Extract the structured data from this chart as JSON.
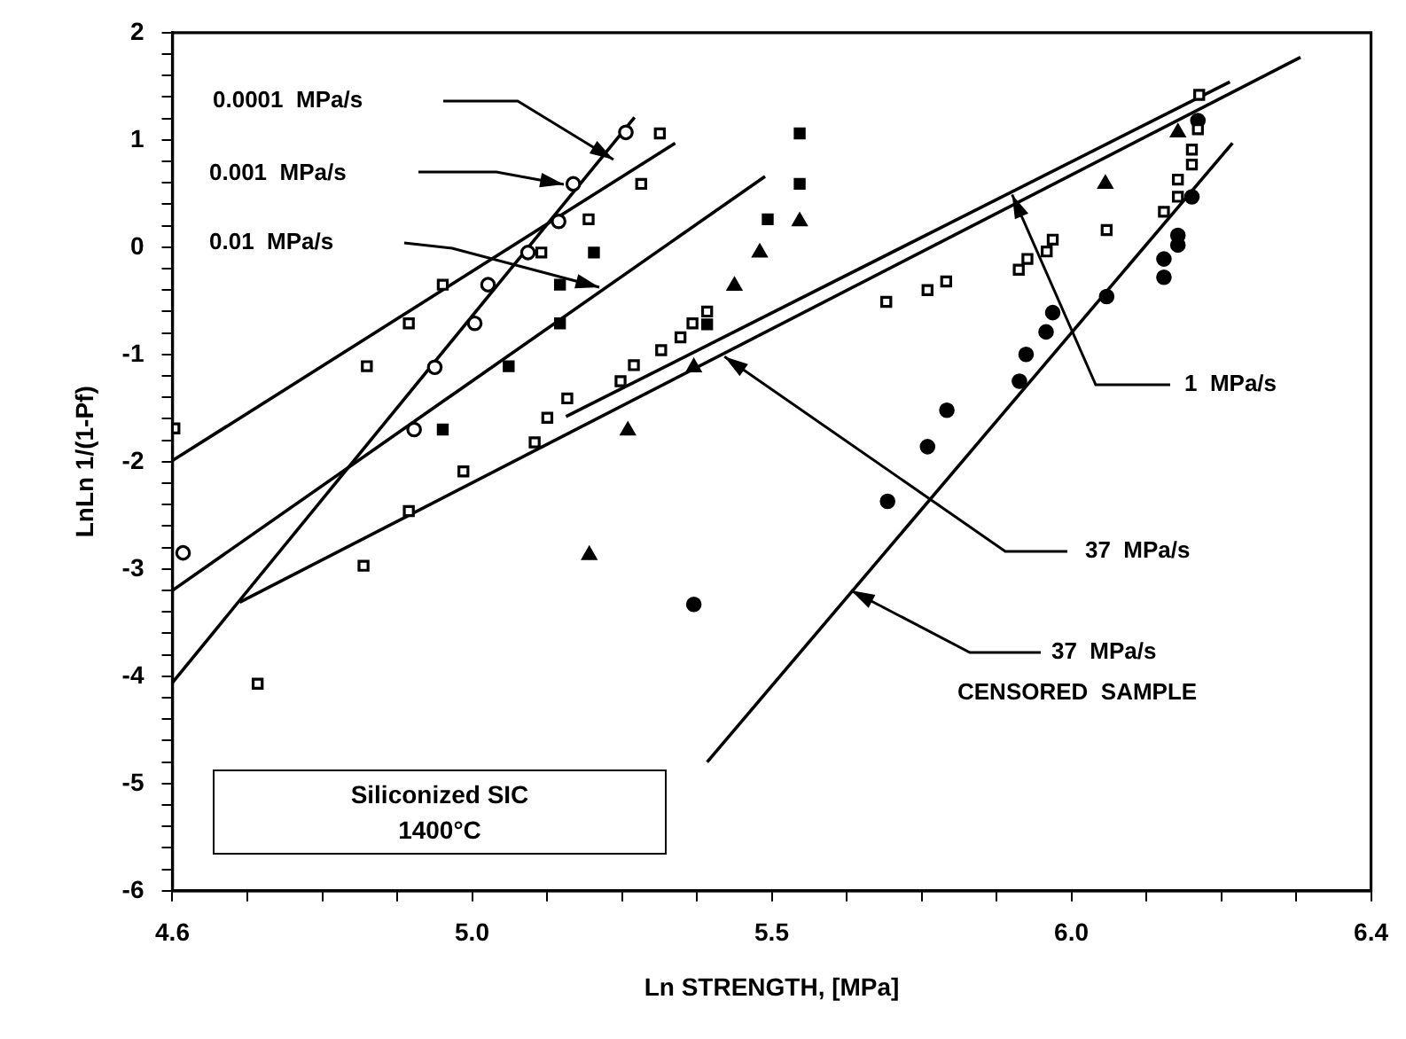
{
  "chart_data": {
    "type": "scatter",
    "xlabel": "Ln STRENGTH, [MPa]",
    "ylabel": "LnLn 1/(1-Pf)",
    "xlim": [
      4.6,
      6.4
    ],
    "xticks": [
      4.6,
      {
        "value": 4.7125,
        "label": null
      },
      {
        "value": 4.825,
        "label": null
      },
      {
        "value": 4.9375,
        "label": null
      },
      {
        "value": 5.05,
        "label": "5.0"
      },
      {
        "value": 5.1625,
        "label": null
      },
      {
        "value": 5.275,
        "label": null
      },
      {
        "value": 5.3875,
        "label": null
      },
      5.5,
      {
        "value": 5.6125,
        "label": null
      },
      {
        "value": 5.725,
        "label": null
      },
      {
        "value": 5.8375,
        "label": null
      },
      {
        "value": 5.95,
        "label": "6.0"
      },
      {
        "value": 6.0625,
        "label": null
      },
      {
        "value": 6.175,
        "label": null
      },
      {
        "value": 6.2875,
        "label": null
      },
      6.4
    ],
    "ylim": [
      -6,
      2
    ],
    "yticks": [
      -6,
      {
        "value": -5.8,
        "label": null
      },
      {
        "value": -5.6,
        "label": null
      },
      {
        "value": -5.4,
        "label": null
      },
      {
        "value": -5.2,
        "label": null
      },
      -5,
      {
        "value": -4.8,
        "label": null
      },
      {
        "value": -4.6,
        "label": null
      },
      {
        "value": -4.4,
        "label": null
      },
      {
        "value": -4.2,
        "label": null
      },
      -4,
      {
        "value": -3.8,
        "label": null
      },
      {
        "value": -3.6,
        "label": null
      },
      {
        "value": -3.4,
        "label": null
      },
      {
        "value": -3.2,
        "label": null
      },
      -3,
      {
        "value": -2.8,
        "label": null
      },
      {
        "value": -2.6,
        "label": null
      },
      {
        "value": -2.4,
        "label": null
      },
      {
        "value": -2.2,
        "label": null
      },
      -2,
      {
        "value": -1.8,
        "label": null
      },
      {
        "value": -1.6,
        "label": null
      },
      {
        "value": -1.4,
        "label": null
      },
      {
        "value": -1.2,
        "label": null
      },
      -1,
      {
        "value": -0.8,
        "label": null
      },
      {
        "value": -0.6,
        "label": null
      },
      {
        "value": -0.4,
        "label": null
      },
      {
        "value": -0.2,
        "label": null
      },
      0,
      {
        "value": 0.2,
        "label": null
      },
      {
        "value": 0.4,
        "label": null
      },
      {
        "value": 0.6,
        "label": null
      },
      {
        "value": 0.8,
        "label": null
      },
      1,
      {
        "value": 1.2,
        "label": null
      },
      {
        "value": 1.4,
        "label": null
      },
      {
        "value": 1.6,
        "label": null
      },
      {
        "value": 1.8,
        "label": null
      },
      2
    ],
    "grid": false,
    "legend": false,
    "series": [
      {
        "type": "scatter",
        "marker": "circle",
        "color": "#000000",
        "x": [
          4.616,
          4.963,
          4.994,
          5.054,
          5.074,
          5.134,
          5.18,
          5.202,
          5.281
        ],
        "values": [
          -2.85,
          -1.7,
          -1.12,
          -0.71,
          -0.35,
          -0.05,
          0.24,
          0.59,
          1.07
        ]
      },
      {
        "type": "scatter",
        "marker": "square",
        "color": "#000000",
        "x": [
          4.603,
          4.892,
          4.955,
          5.006,
          5.154,
          5.225,
          5.304,
          5.332,
          4.728,
          4.887,
          4.955,
          5.037,
          5.144,
          5.163,
          5.193,
          5.273,
          5.293,
          5.334,
          5.363,
          5.381,
          5.403,
          5.672,
          5.734,
          5.762,
          5.871,
          5.884,
          5.913,
          5.922,
          6.003,
          6.089,
          6.11,
          6.11,
          6.131,
          6.131,
          6.14,
          6.142
        ],
        "values": [
          -1.69,
          -1.11,
          -0.71,
          -0.35,
          -0.05,
          0.26,
          0.59,
          1.06,
          -4.07,
          -2.97,
          -2.46,
          -2.09,
          -1.82,
          -1.59,
          -1.41,
          -1.25,
          -1.1,
          -0.96,
          -0.84,
          -0.71,
          -0.6,
          -0.51,
          -0.4,
          -0.32,
          -0.21,
          -0.11,
          -0.04,
          0.07,
          0.16,
          0.33,
          0.47,
          0.63,
          0.77,
          0.91,
          1.1,
          1.42
        ]
      },
      {
        "type": "scatter",
        "marker": "square",
        "color": "#000000",
        "x": [
          5.006,
          5.105,
          5.182,
          5.182,
          5.233,
          5.403,
          5.494,
          5.542,
          5.542
        ],
        "values": [
          -1.7,
          -1.11,
          -0.71,
          -0.35,
          -0.05,
          -0.72,
          0.26,
          0.59,
          1.06
        ]
      },
      {
        "type": "scatter",
        "marker": "triangle",
        "color": "#000000",
        "x": [
          5.226,
          5.284,
          5.383,
          5.444,
          5.482,
          5.542,
          6.001,
          6.11
        ],
        "values": [
          -2.87,
          -1.71,
          -1.12,
          -0.36,
          -0.05,
          0.24,
          0.59,
          1.07
        ]
      },
      {
        "type": "scatter",
        "marker": "circle",
        "color": "#000000",
        "x": [
          5.383,
          5.674,
          5.734,
          5.763,
          5.872,
          5.882,
          5.912,
          5.922,
          6.003,
          6.089,
          6.089,
          6.11,
          6.11,
          6.131,
          6.137,
          6.14
        ],
        "values": [
          -3.33,
          -2.37,
          -1.86,
          -1.52,
          -1.25,
          -1.0,
          -0.79,
          -0.61,
          -0.46,
          -0.28,
          -0.11,
          0.02,
          0.11,
          0.47,
          null,
          1.18
        ]
      },
      {
        "type": "line",
        "marker": "none",
        "color": "#000000",
        "x": [
          4.6,
          5.294
        ],
        "values": [
          -4.06,
          1.21
        ]
      },
      {
        "type": "line",
        "marker": "none",
        "color": "#000000",
        "x": [
          4.6,
          5.355
        ],
        "values": [
          -1.99,
          0.97
        ]
      },
      {
        "type": "line",
        "marker": "none",
        "color": "#000000",
        "x": [
          4.6,
          5.49
        ],
        "values": [
          -3.2,
          0.66
        ]
      },
      {
        "type": "line",
        "marker": "none",
        "color": "#000000",
        "x": [
          4.701,
          6.294
        ],
        "values": [
          -3.31,
          1.77
        ]
      },
      {
        "type": "line",
        "marker": "none",
        "color": "#000000",
        "x": [
          5.191,
          6.188
        ],
        "values": [
          -1.58,
          1.54
        ]
      },
      {
        "type": "line",
        "marker": "none",
        "color": "#000000",
        "x": [
          5.403,
          6.192
        ],
        "values": [
          -4.8,
          0.97
        ]
      }
    ],
    "annotations": [
      "0.0001  MPa/s",
      "0.001  MPa/s",
      "0.01  MPa/s",
      {
        "text": "1  MPa/s",
        "x": 5.861,
        "y": 0.49
      },
      {
        "text": "37  MPa/s",
        "x": 5.429,
        "y": -1.02
      },
      {
        "text": "37  MPa/s\nCENSORED  SAMPLE",
        "x": 5.619,
        "y": -3.2
      },
      "Siliconized  SIC\n1400°C"
    ]
  }
}
